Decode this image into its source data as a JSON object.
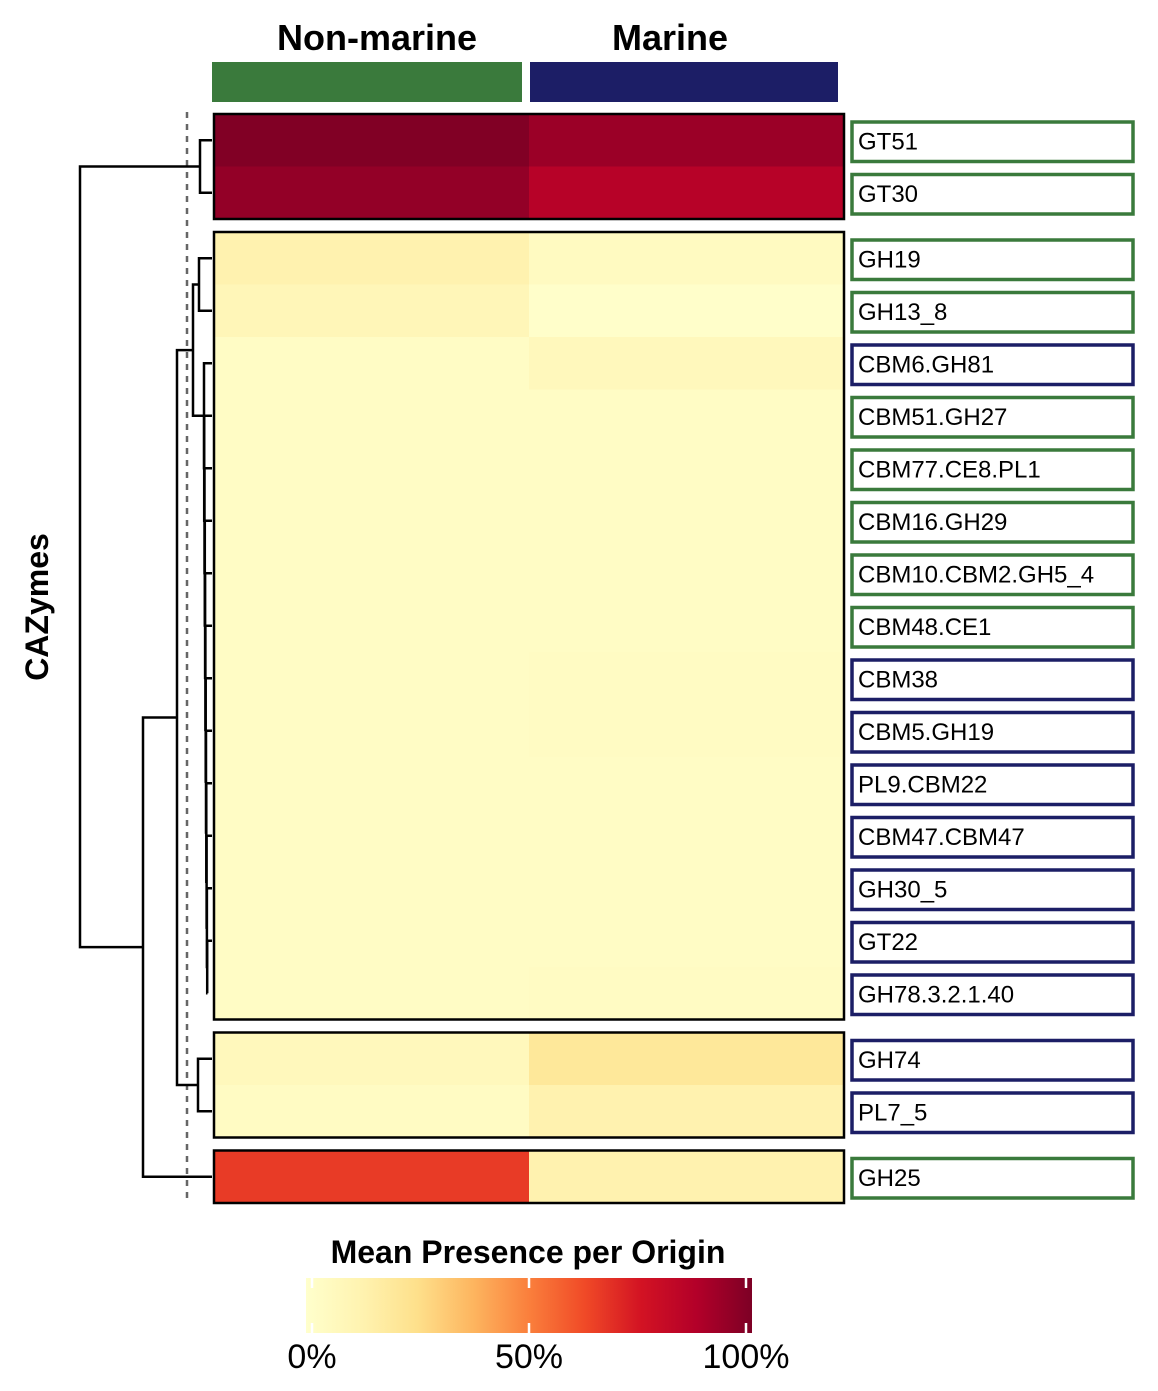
{
  "chart_data": {
    "type": "heatmap",
    "ylabel": "CAZymes",
    "columns": [
      {
        "name": "Non-marine",
        "color": "#3a7a3c"
      },
      {
        "name": "Marine",
        "color": "#1c1e66"
      }
    ],
    "rows": [
      {
        "label": "GT51",
        "origin": "Non-marine",
        "values": [
          0.99,
          0.93
        ],
        "cluster": 0
      },
      {
        "label": "GT30",
        "origin": "Non-marine",
        "values": [
          0.95,
          0.86
        ],
        "cluster": 0
      },
      {
        "label": "GH19",
        "origin": "Non-marine",
        "values": [
          0.13,
          0.05
        ],
        "cluster": 1
      },
      {
        "label": "GH13_8",
        "origin": "Non-marine",
        "values": [
          0.09,
          0.01
        ],
        "cluster": 1
      },
      {
        "label": "CBM6.GH81",
        "origin": "Marine",
        "values": [
          0.03,
          0.07
        ],
        "cluster": 1
      },
      {
        "label": "CBM51.GH27",
        "origin": "Non-marine",
        "values": [
          0.03,
          0.03
        ],
        "cluster": 1
      },
      {
        "label": "CBM77.CE8.PL1",
        "origin": "Non-marine",
        "values": [
          0.03,
          0.03
        ],
        "cluster": 1
      },
      {
        "label": "CBM16.GH29",
        "origin": "Non-marine",
        "values": [
          0.03,
          0.03
        ],
        "cluster": 1
      },
      {
        "label": "CBM10.CBM2.GH5_4",
        "origin": "Non-marine",
        "values": [
          0.03,
          0.03
        ],
        "cluster": 1
      },
      {
        "label": "CBM48.CE1",
        "origin": "Non-marine",
        "values": [
          0.03,
          0.03
        ],
        "cluster": 1
      },
      {
        "label": "CBM38",
        "origin": "Marine",
        "values": [
          0.03,
          0.04
        ],
        "cluster": 1
      },
      {
        "label": "CBM5.GH19",
        "origin": "Marine",
        "values": [
          0.03,
          0.04
        ],
        "cluster": 1
      },
      {
        "label": "PL9.CBM22",
        "origin": "Marine",
        "values": [
          0.03,
          0.03
        ],
        "cluster": 1
      },
      {
        "label": "CBM47.CBM47",
        "origin": "Marine",
        "values": [
          0.03,
          0.03
        ],
        "cluster": 1
      },
      {
        "label": "GH30_5",
        "origin": "Marine",
        "values": [
          0.03,
          0.03
        ],
        "cluster": 1
      },
      {
        "label": "GT22",
        "origin": "Marine",
        "values": [
          0.03,
          0.03
        ],
        "cluster": 1
      },
      {
        "label": "GH78.3.2.1.40",
        "origin": "Marine",
        "values": [
          0.03,
          0.04
        ],
        "cluster": 1
      },
      {
        "label": "GH74",
        "origin": "Marine",
        "values": [
          0.07,
          0.2
        ],
        "cluster": 2
      },
      {
        "label": "PL7_5",
        "origin": "Marine",
        "values": [
          0.04,
          0.13
        ],
        "cluster": 2
      },
      {
        "label": "GH25",
        "origin": "Non-marine",
        "values": [
          0.66,
          0.13
        ],
        "cluster": 3
      }
    ],
    "legend": {
      "title": "Mean Presence per Origin",
      "ticks": [
        "0%",
        "50%",
        "100%"
      ],
      "tick_values": [
        0,
        0.5,
        1
      ],
      "colors": [
        "#ffffcc",
        "#fff3b0",
        "#fee08b",
        "#fdb55f",
        "#fa7f3c",
        "#f04a27",
        "#d31323",
        "#b30029",
        "#7d0025"
      ]
    }
  }
}
